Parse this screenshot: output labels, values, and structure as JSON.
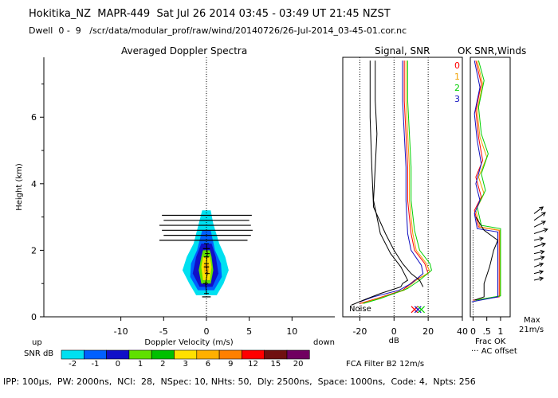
{
  "header": {
    "line1": "Hokitika_NZ  MAPR-449  Sat Jul 26 2014 03:45 - 03:49 UT 21:45 NZST",
    "line2": "Dwell  0 -  9   /scr/data/modular_prof/raw/wind/20140726/26-Jul-2014_03-45-01.cor.nc"
  },
  "footer": "IPP: 100μs,  PW: 2000ns,  NCI:  28,  NSpec: 10, NHts: 50,  Dly: 2500ns,  Space: 1000ns,  Code: 4,  Npts: 256",
  "chart_data": [
    {
      "type": "heatmap",
      "title": "Averaged Doppler Spectra",
      "xlabel": "Doppler Velocity (m/s)",
      "ylabel": "Height (km)",
      "xlim": [
        -19,
        15
      ],
      "ylim": [
        0,
        7.8
      ],
      "xticks": [
        -10,
        -5,
        0,
        5,
        10
      ],
      "yticks": [
        0,
        2,
        4,
        6
      ],
      "x_side_labels": {
        "left": "up",
        "right": "down"
      },
      "colorbar": {
        "label": "SNR dB",
        "ticks": [
          "-2",
          "-1",
          "0",
          "1",
          "2",
          "3",
          "6",
          "9",
          "12",
          "15",
          "20"
        ],
        "colors": [
          "#00e0f0",
          "#0060ff",
          "#1010c8",
          "#60e000",
          "#00c000",
          "#ffe000",
          "#ffb000",
          "#ff8000",
          "#ff0000",
          "#701010",
          "#700060"
        ]
      },
      "contours": [
        {
          "snr": -2,
          "color": "#00e0f0",
          "extent": [
            [
              0.65,
              -1.2,
              1.2
            ],
            [
              1.0,
              -2.0,
              2.0
            ],
            [
              1.4,
              -2.8,
              2.6
            ],
            [
              1.8,
              -2.3,
              2.2
            ],
            [
              2.2,
              -1.5,
              1.5
            ],
            [
              2.8,
              -0.9,
              0.8
            ],
            [
              3.2,
              -0.5,
              0.5
            ]
          ]
        },
        {
          "snr": -1,
          "color": "#0060ff",
          "extent": [
            [
              0.8,
              -1.0,
              0.9
            ],
            [
              1.2,
              -1.9,
              1.8
            ],
            [
              1.6,
              -1.8,
              1.7
            ],
            [
              2.0,
              -1.1,
              1.0
            ],
            [
              2.6,
              -0.5,
              0.5
            ]
          ]
        },
        {
          "snr": 0,
          "color": "#1010c8",
          "extent": [
            [
              0.9,
              -0.8,
              0.7
            ],
            [
              1.3,
              -1.6,
              1.4
            ],
            [
              1.8,
              -1.2,
              1.1
            ],
            [
              2.2,
              -0.6,
              0.6
            ]
          ]
        },
        {
          "snr": 2,
          "color": "#60e000",
          "extent": [
            [
              1.0,
              -0.6,
              0.5
            ],
            [
              1.4,
              -0.9,
              0.8
            ],
            [
              1.8,
              -0.6,
              0.6
            ],
            [
              2.0,
              -0.4,
              0.4
            ]
          ]
        },
        {
          "snr": 3,
          "color": "#ffe000",
          "extent": [
            [
              1.1,
              -0.4,
              0.4
            ],
            [
              1.5,
              -0.6,
              0.6
            ],
            [
              1.8,
              -0.4,
              0.4
            ]
          ]
        },
        {
          "snr": 6,
          "color": "#ffb000",
          "extent": [
            [
              1.3,
              -0.25,
              0.25
            ],
            [
              1.5,
              -0.3,
              0.3
            ],
            [
              1.6,
              -0.2,
              0.2
            ]
          ]
        }
      ],
      "peak_velocity": [
        [
          0.7,
          0.0
        ],
        [
          1.0,
          -0.1
        ],
        [
          1.3,
          0.1
        ],
        [
          1.6,
          0.0
        ],
        [
          1.9,
          0.1
        ],
        [
          2.2,
          0.0
        ]
      ],
      "noise_marks": [
        [
          0.6,
          -0.5,
          0.5
        ],
        [
          1.5,
          -0.3,
          0.3
        ],
        [
          1.8,
          -0.3,
          0.3
        ],
        [
          2.05,
          -0.4,
          0.4
        ],
        [
          2.3,
          -5.5,
          4.8
        ],
        [
          2.45,
          -5.0,
          5.2
        ],
        [
          2.6,
          -5.2,
          5.4
        ],
        [
          2.75,
          -5.5,
          5.2
        ],
        [
          2.9,
          -5.0,
          5.0
        ],
        [
          3.05,
          -5.2,
          5.3
        ]
      ]
    },
    {
      "type": "line",
      "title": "Signal, SNR",
      "xlabel": "dB",
      "xlim": [
        -30,
        40
      ],
      "ylim": [
        0,
        7.8
      ],
      "xticks": [
        -20,
        0,
        20,
        40
      ],
      "annotation": "Noise",
      "dotted_x": [
        -20,
        0,
        20
      ],
      "series": [
        {
          "name": "0",
          "color": "#ff0000",
          "points": [
            [
              -20,
              0.4
            ],
            [
              -10,
              0.55
            ],
            [
              5,
              0.8
            ],
            [
              12,
              1.1
            ],
            [
              20,
              1.3
            ],
            [
              18,
              1.6
            ],
            [
              12,
              2.0
            ],
            [
              10,
              2.5
            ],
            [
              8,
              3.5
            ],
            [
              8,
              4.5
            ],
            [
              7,
              5.5
            ],
            [
              6,
              6.5
            ],
            [
              6,
              7.7
            ]
          ]
        },
        {
          "name": "1",
          "color": "#f0a000",
          "points": [
            [
              -19,
              0.4
            ],
            [
              -9,
              0.55
            ],
            [
              6,
              0.8
            ],
            [
              13,
              1.1
            ],
            [
              21,
              1.35
            ],
            [
              19,
              1.6
            ],
            [
              13,
              2.0
            ],
            [
              11,
              2.5
            ],
            [
              9,
              3.5
            ],
            [
              9,
              4.5
            ],
            [
              8,
              5.5
            ],
            [
              7,
              6.5
            ],
            [
              7,
              7.7
            ]
          ]
        },
        {
          "name": "2",
          "color": "#00d000",
          "points": [
            [
              -18,
              0.4
            ],
            [
              -8,
              0.55
            ],
            [
              8,
              0.85
            ],
            [
              15,
              1.1
            ],
            [
              22,
              1.4
            ],
            [
              21,
              1.6
            ],
            [
              15,
              2.0
            ],
            [
              12,
              2.6
            ],
            [
              10,
              3.5
            ],
            [
              10,
              4.5
            ],
            [
              9,
              5.5
            ],
            [
              8,
              6.5
            ],
            [
              8,
              7.7
            ]
          ]
        },
        {
          "name": "3",
          "color": "#1010c0",
          "points": [
            [
              -20,
              0.45
            ],
            [
              -12,
              0.6
            ],
            [
              3,
              0.8
            ],
            [
              10,
              1.0
            ],
            [
              17,
              1.3
            ],
            [
              16,
              1.55
            ],
            [
              10,
              2.0
            ],
            [
              8,
              2.5
            ],
            [
              7,
              3.5
            ],
            [
              7,
              4.5
            ],
            [
              6,
              5.5
            ],
            [
              5,
              6.5
            ],
            [
              5,
              7.7
            ]
          ]
        },
        {
          "name": "noise",
          "color": "#000000",
          "points": [
            [
              -25,
              0.35
            ],
            [
              -18,
              0.5
            ],
            [
              -8,
              0.7
            ],
            [
              4,
              0.9
            ],
            [
              5,
              1.0
            ],
            [
              8,
              1.1
            ],
            [
              6,
              1.3
            ],
            [
              4,
              1.5
            ],
            [
              -2,
              1.9
            ],
            [
              -8,
              2.5
            ],
            [
              -12,
              3.5
            ],
            [
              -11,
              4.5
            ],
            [
              -10,
              5.5
            ],
            [
              -11,
              6.5
            ],
            [
              -11,
              7.7
            ]
          ]
        },
        {
          "name": "signal",
          "color": "#000000",
          "points": [
            [
              -14,
              7.7
            ],
            [
              -14,
              6.0
            ],
            [
              -13,
              4.5
            ],
            [
              -12,
              3.3
            ],
            [
              -5,
              2.5
            ],
            [
              0,
              2.0
            ],
            [
              5,
              1.6
            ],
            [
              10,
              1.3
            ],
            [
              15,
              1.1
            ],
            [
              17,
              0.9
            ]
          ]
        }
      ]
    },
    {
      "type": "line",
      "title": "OK SNR,Winds",
      "xlim": [
        -0.1,
        1.35
      ],
      "ylim": [
        0,
        7.8
      ],
      "xticks": [
        0,
        0.5,
        1
      ],
      "xtick_labels": [
        "0",
        ".5",
        "1"
      ],
      "legend": [
        {
          "label": "0",
          "color": "#ff0000"
        },
        {
          "label": "1",
          "color": "#f0a000"
        },
        {
          "label": "2",
          "color": "#00d000"
        },
        {
          "label": "3",
          "color": "#1010c0"
        }
      ],
      "legend_labels": [
        "Frac OK",
        "AC offset"
      ],
      "wind_scale_label": [
        "Max",
        "21m/s"
      ],
      "series": [
        {
          "name": "0",
          "color": "#ff0000",
          "points": [
            [
              0.0,
              0.5
            ],
            [
              0.95,
              0.6
            ],
            [
              0.95,
              2.6
            ],
            [
              0.2,
              2.7
            ],
            [
              0.05,
              3.2
            ],
            [
              0.3,
              3.6
            ],
            [
              0.1,
              4.2
            ],
            [
              0.35,
              4.7
            ],
            [
              0.2,
              5.4
            ],
            [
              0.1,
              6.2
            ],
            [
              0.3,
              7.0
            ],
            [
              0.1,
              7.7
            ]
          ]
        },
        {
          "name": "1",
          "color": "#f0a000",
          "points": [
            [
              0.05,
              0.5
            ],
            [
              0.98,
              0.62
            ],
            [
              0.98,
              2.6
            ],
            [
              0.25,
              2.7
            ],
            [
              0.1,
              3.2
            ],
            [
              0.4,
              3.7
            ],
            [
              0.2,
              4.2
            ],
            [
              0.5,
              4.8
            ],
            [
              0.25,
              5.4
            ],
            [
              0.15,
              6.2
            ],
            [
              0.35,
              7.0
            ],
            [
              0.15,
              7.7
            ]
          ]
        },
        {
          "name": "2",
          "color": "#00d000",
          "points": [
            [
              0.1,
              0.5
            ],
            [
              1.0,
              0.63
            ],
            [
              1.0,
              2.65
            ],
            [
              0.3,
              2.75
            ],
            [
              0.15,
              3.3
            ],
            [
              0.45,
              3.8
            ],
            [
              0.3,
              4.3
            ],
            [
              0.55,
              4.9
            ],
            [
              0.3,
              5.5
            ],
            [
              0.2,
              6.3
            ],
            [
              0.4,
              7.1
            ],
            [
              0.2,
              7.7
            ]
          ]
        },
        {
          "name": "3",
          "color": "#1010c0",
          "points": [
            [
              -0.05,
              0.45
            ],
            [
              0.9,
              0.6
            ],
            [
              0.9,
              2.55
            ],
            [
              0.15,
              2.65
            ],
            [
              0.05,
              3.1
            ],
            [
              0.25,
              3.5
            ],
            [
              0.1,
              4.0
            ],
            [
              0.3,
              4.6
            ],
            [
              0.15,
              5.3
            ],
            [
              0.05,
              6.1
            ],
            [
              0.25,
              6.9
            ],
            [
              0.05,
              7.7
            ]
          ]
        },
        {
          "name": "frac",
          "color": "#000000",
          "points": [
            [
              0.05,
              0.5
            ],
            [
              0.4,
              0.6
            ],
            [
              0.4,
              1.0
            ],
            [
              0.6,
              1.5
            ],
            [
              0.75,
              2.0
            ],
            [
              0.9,
              2.3
            ],
            [
              0.4,
              2.6
            ],
            [
              0.1,
              3.0
            ]
          ]
        }
      ],
      "winds": [
        {
          "h": 1.1,
          "u": 0.4,
          "v": 0.1
        },
        {
          "h": 1.3,
          "u": 0.4,
          "v": 0.1
        },
        {
          "h": 1.5,
          "u": 0.4,
          "v": 0.15
        },
        {
          "h": 1.7,
          "u": 0.45,
          "v": 0.15
        },
        {
          "h": 1.9,
          "u": 0.45,
          "v": 0.1
        },
        {
          "h": 2.1,
          "u": 0.5,
          "v": 0.15
        },
        {
          "h": 2.3,
          "u": 0.4,
          "v": 0.1
        },
        {
          "h": 2.5,
          "u": 0.6,
          "v": 0.2
        },
        {
          "h": 2.7,
          "u": 0.5,
          "v": 0.25
        },
        {
          "h": 2.9,
          "u": 0.5,
          "v": 0.35
        },
        {
          "h": 3.1,
          "u": 0.4,
          "v": 0.3
        }
      ]
    }
  ],
  "labels": {
    "spectra_title": "Averaged Doppler Spectra",
    "signal_title": "Signal, SNR",
    "ok_title": "OK SNR,Winds",
    "fca": "FCA Filter B2 12m/s"
  }
}
